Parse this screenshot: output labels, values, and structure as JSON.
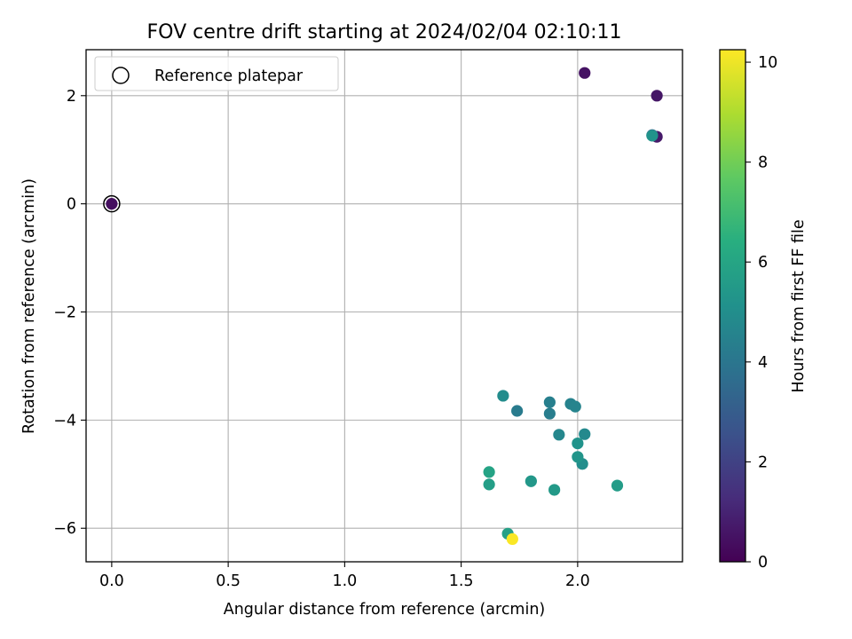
{
  "chart_data": {
    "type": "scatter",
    "title": "FOV centre drift starting at 2024/02/04 02:10:11",
    "xlabel": "Angular distance from reference (arcmin)",
    "ylabel": "Rotation from reference (arcmin)",
    "xlim": [
      -0.11,
      2.45
    ],
    "ylim": [
      -6.62,
      2.85
    ],
    "xticks": [
      0.0,
      0.5,
      1.0,
      1.5,
      2.0
    ],
    "xtick_labels": [
      "0.0",
      "0.5",
      "1.0",
      "1.5",
      "2.0"
    ],
    "yticks": [
      -6,
      -4,
      -2,
      0,
      2
    ],
    "ytick_labels": [
      "−6",
      "−4",
      "−2",
      "0",
      "2"
    ],
    "grid": true,
    "legend": {
      "position": "top-left",
      "entries": [
        "Reference platepar"
      ]
    },
    "reference_point": {
      "x": 0.0,
      "y": 0.0
    },
    "colormap": "viridis",
    "colorbar": {
      "label": "Hours from first FF file",
      "range": [
        0,
        10.25
      ],
      "ticks": [
        0,
        2,
        4,
        6,
        8,
        10
      ],
      "tick_labels": [
        "0",
        "2",
        "4",
        "6",
        "8",
        "10"
      ]
    },
    "points": [
      {
        "x": 0.0,
        "y": 0.0,
        "hours": 0.4
      },
      {
        "x": 2.03,
        "y": 2.42,
        "hours": 0.5
      },
      {
        "x": 2.34,
        "y": 2.0,
        "hours": 0.6
      },
      {
        "x": 2.34,
        "y": 1.24,
        "hours": 0.7
      },
      {
        "x": 2.32,
        "y": 1.27,
        "hours": 3.3
      },
      {
        "x": 2.32,
        "y": 1.26,
        "hours": 5.2
      },
      {
        "x": 1.74,
        "y": -3.83,
        "hours": 4.2
      },
      {
        "x": 1.88,
        "y": -3.88,
        "hours": 4.3
      },
      {
        "x": 1.88,
        "y": -3.67,
        "hours": 4.4
      },
      {
        "x": 1.97,
        "y": -3.7,
        "hours": 4.5
      },
      {
        "x": 1.99,
        "y": -3.75,
        "hours": 4.6
      },
      {
        "x": 1.92,
        "y": -4.27,
        "hours": 4.7
      },
      {
        "x": 2.03,
        "y": -4.26,
        "hours": 4.8
      },
      {
        "x": 1.68,
        "y": -3.55,
        "hours": 4.9
      },
      {
        "x": 2.02,
        "y": -4.81,
        "hours": 5.0
      },
      {
        "x": 2.0,
        "y": -4.43,
        "hours": 5.2
      },
      {
        "x": 2.0,
        "y": -4.68,
        "hours": 5.3
      },
      {
        "x": 1.8,
        "y": -5.13,
        "hours": 5.4
      },
      {
        "x": 1.9,
        "y": -5.29,
        "hours": 5.5
      },
      {
        "x": 2.17,
        "y": -5.21,
        "hours": 5.6
      },
      {
        "x": 1.62,
        "y": -5.19,
        "hours": 5.7
      },
      {
        "x": 1.62,
        "y": -4.96,
        "hours": 5.9
      },
      {
        "x": 1.7,
        "y": -6.1,
        "hours": 5.8
      },
      {
        "x": 1.72,
        "y": -6.2,
        "hours": 10.2
      }
    ]
  }
}
